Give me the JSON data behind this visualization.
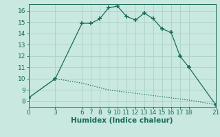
{
  "xlabel": "Humidex (Indice chaleur)",
  "bg_color": "#c8e8e0",
  "grid_color": "#b0d4cc",
  "line_color": "#1a6b5a",
  "xlim": [
    0,
    21
  ],
  "ylim": [
    7.5,
    16.6
  ],
  "xticks": [
    0,
    3,
    6,
    7,
    8,
    9,
    10,
    11,
    12,
    13,
    14,
    15,
    16,
    17,
    18,
    21
  ],
  "yticks": [
    8,
    9,
    10,
    11,
    12,
    13,
    14,
    15,
    16
  ],
  "curve_x": [
    0,
    3,
    6,
    7,
    8,
    9,
    10,
    11,
    12,
    13,
    14,
    15,
    16,
    17,
    18,
    21
  ],
  "curve_y": [
    8.3,
    10.0,
    14.9,
    14.9,
    15.3,
    16.3,
    16.4,
    15.5,
    15.2,
    15.8,
    15.3,
    14.4,
    14.1,
    12.0,
    11.0,
    7.7
  ],
  "baseline_x": [
    0,
    3,
    6,
    7,
    8,
    9,
    10,
    11,
    12,
    13,
    14,
    15,
    16,
    17,
    18,
    21
  ],
  "baseline_y": [
    8.3,
    10.0,
    9.6,
    9.4,
    9.2,
    9.0,
    8.9,
    8.8,
    8.7,
    8.6,
    8.5,
    8.4,
    8.3,
    8.2,
    8.1,
    7.7
  ],
  "tick_fontsize": 6.5,
  "xlabel_fontsize": 7.5
}
